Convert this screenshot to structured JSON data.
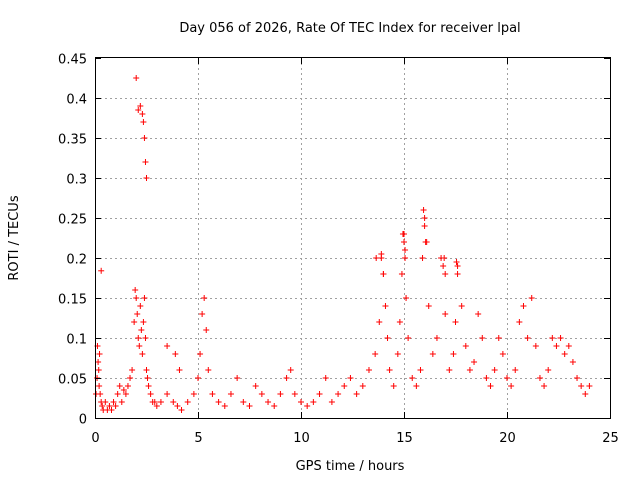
{
  "chart_data": {
    "type": "scatter",
    "title": "Day 056 of 2026, Rate Of TEC Index for receiver lpal",
    "xlabel": "GPS time / hours",
    "ylabel": "ROTI / TECUs",
    "xlim": [
      0,
      25
    ],
    "ylim": [
      0,
      0.45
    ],
    "xticks": [
      0,
      5,
      10,
      15,
      20,
      25
    ],
    "yticks": [
      0,
      0.05,
      0.1,
      0.15,
      0.2,
      0.25,
      0.3,
      0.35,
      0.4,
      0.45
    ],
    "xtick_labels": [
      "0",
      "5",
      "10",
      "15",
      "20",
      "25"
    ],
    "ytick_labels": [
      "0",
      "0.05",
      "0.1",
      "0.15",
      "0.2",
      "0.25",
      "0.3",
      "0.35",
      "0.4",
      "0.45"
    ],
    "grid": true,
    "marker": "+",
    "color": "#ff0000",
    "series": [
      {
        "x": [
          0.05,
          0.1,
          0.12,
          0.15,
          0.18,
          0.2,
          0.22,
          0.25,
          0.3,
          0.35,
          0.4,
          0.5,
          0.6,
          0.7,
          0.8,
          0.9,
          1.0,
          1.1,
          1.2,
          1.3,
          1.4,
          1.5,
          1.6,
          1.7,
          1.8,
          1.9,
          1.95,
          2.0,
          2.05,
          2.1,
          2.15,
          2.2,
          2.25,
          2.3,
          2.35,
          2.4,
          2.45,
          2.5,
          2.55,
          2.6,
          2.7,
          2.8,
          2.9,
          3.0,
          3.2,
          3.5,
          3.8,
          4.0,
          4.2,
          4.5,
          4.8,
          5.0,
          5.1,
          5.2,
          5.3,
          5.4,
          5.5,
          5.7,
          6.0,
          6.3,
          6.6,
          6.9,
          7.2,
          7.5,
          7.8,
          8.1,
          8.4,
          8.7,
          9.0,
          9.3,
          9.5,
          9.7,
          10.0,
          10.3,
          10.6,
          10.9,
          11.2,
          11.5,
          11.8,
          12.1,
          12.4,
          12.7,
          13.0,
          13.3,
          13.6,
          13.8,
          13.9,
          14.0,
          14.1,
          14.2,
          14.3,
          14.5,
          14.7,
          14.8,
          14.9,
          15.0,
          15.05,
          15.1,
          15.2,
          15.4,
          15.6,
          15.8,
          15.9,
          16.0,
          16.1,
          16.2,
          16.4,
          16.6,
          16.8,
          16.9,
          17.0,
          17.2,
          17.4,
          17.5,
          17.6,
          17.8,
          18.0,
          18.2,
          18.4,
          18.6,
          18.8,
          19.0,
          19.2,
          19.4,
          19.6,
          19.8,
          20.0,
          20.2,
          20.4,
          20.6,
          20.8,
          21.0,
          21.2,
          21.4,
          21.6,
          21.8,
          22.0,
          22.2,
          22.4,
          22.6,
          22.8,
          23.0,
          23.2,
          23.4,
          23.6,
          23.8,
          24.0,
          0.3,
          2.0,
          2.1,
          2.2,
          2.3,
          2.35,
          2.4,
          2.45,
          2.5,
          14.95,
          15.0,
          15.05,
          15.95,
          16.0,
          16.05,
          16.95,
          17.0,
          17.55,
          17.6,
          3.5,
          3.9,
          4.1,
          13.65,
          13.9,
          14.0
        ],
        "y": [
          0.03,
          0.05,
          0.09,
          0.07,
          0.06,
          0.04,
          0.08,
          0.03,
          0.02,
          0.015,
          0.01,
          0.02,
          0.01,
          0.015,
          0.01,
          0.02,
          0.015,
          0.03,
          0.04,
          0.02,
          0.035,
          0.03,
          0.04,
          0.05,
          0.06,
          0.12,
          0.16,
          0.15,
          0.13,
          0.1,
          0.09,
          0.14,
          0.11,
          0.08,
          0.12,
          0.15,
          0.1,
          0.06,
          0.05,
          0.04,
          0.03,
          0.02,
          0.02,
          0.015,
          0.02,
          0.03,
          0.02,
          0.015,
          0.01,
          0.02,
          0.03,
          0.05,
          0.08,
          0.13,
          0.15,
          0.11,
          0.06,
          0.03,
          0.02,
          0.015,
          0.03,
          0.05,
          0.02,
          0.015,
          0.04,
          0.03,
          0.02,
          0.015,
          0.03,
          0.05,
          0.06,
          0.03,
          0.02,
          0.015,
          0.02,
          0.03,
          0.05,
          0.02,
          0.03,
          0.04,
          0.05,
          0.03,
          0.04,
          0.06,
          0.08,
          0.12,
          0.2,
          0.18,
          0.14,
          0.1,
          0.06,
          0.04,
          0.08,
          0.12,
          0.18,
          0.23,
          0.21,
          0.15,
          0.1,
          0.05,
          0.04,
          0.06,
          0.2,
          0.25,
          0.22,
          0.14,
          0.08,
          0.1,
          0.2,
          0.19,
          0.13,
          0.06,
          0.08,
          0.12,
          0.19,
          0.14,
          0.09,
          0.06,
          0.07,
          0.13,
          0.1,
          0.05,
          0.04,
          0.06,
          0.1,
          0.08,
          0.05,
          0.04,
          0.06,
          0.12,
          0.14,
          0.1,
          0.15,
          0.09,
          0.05,
          0.04,
          0.06,
          0.1,
          0.09,
          0.1,
          0.08,
          0.09,
          0.07,
          0.05,
          0.04,
          0.03,
          0.04,
          0.184,
          0.425,
          0.385,
          0.39,
          0.38,
          0.37,
          0.35,
          0.32,
          0.3,
          0.23,
          0.22,
          0.2,
          0.26,
          0.24,
          0.22,
          0.2,
          0.18,
          0.195,
          0.18,
          0.09,
          0.08,
          0.06,
          0.2,
          0.205,
          0.18
        ]
      }
    ]
  }
}
